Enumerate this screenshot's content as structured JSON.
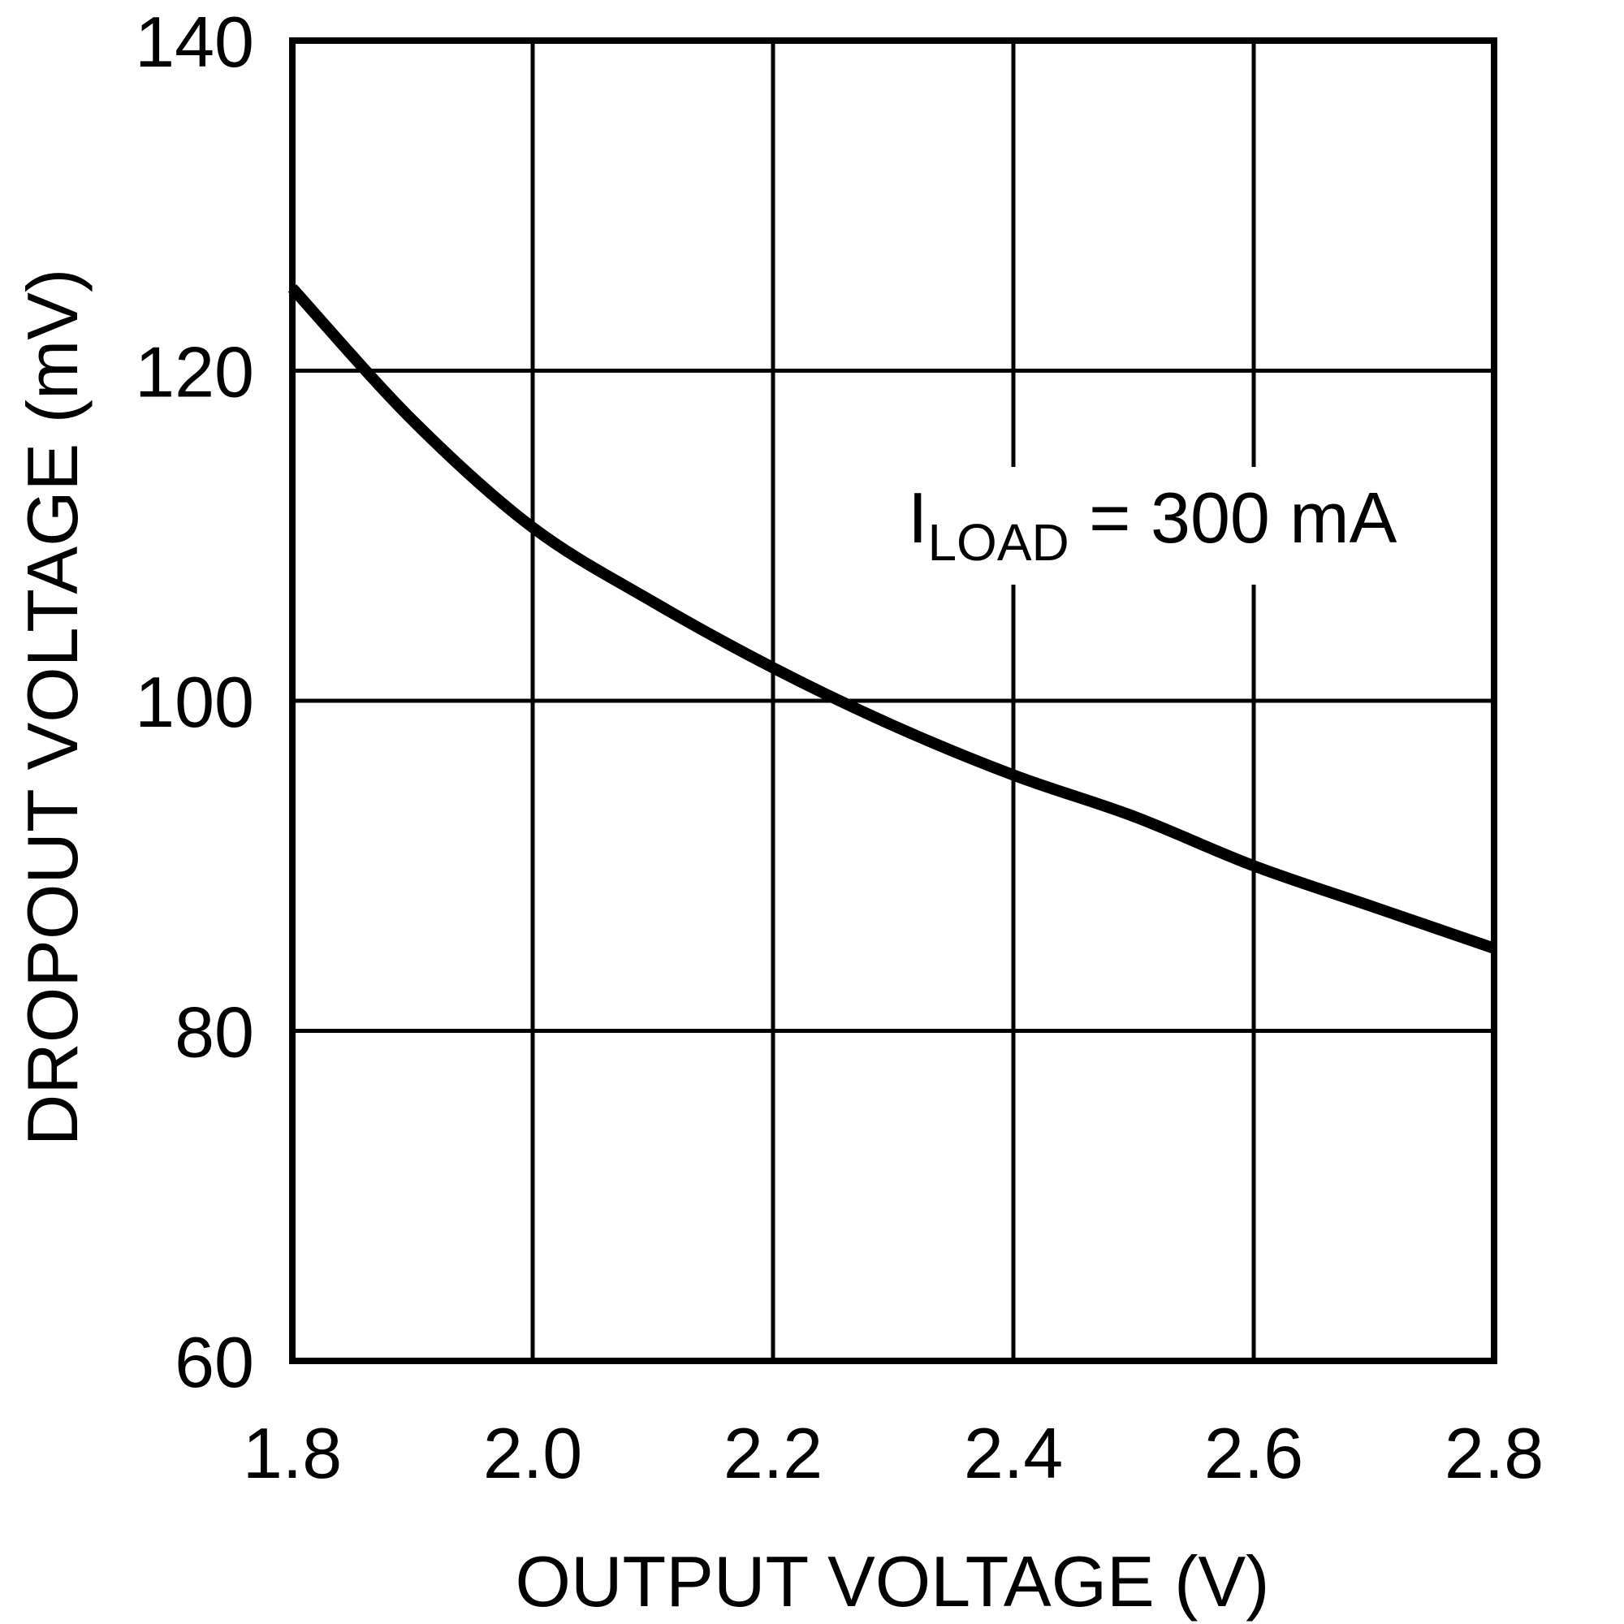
{
  "chart_data": {
    "type": "line",
    "title": "",
    "xlabel": "OUTPUT VOLTAGE (V)",
    "ylabel": "DROPOUT VOLTAGE (mV)",
    "xlim": [
      1.8,
      2.8
    ],
    "ylim": [
      60,
      140
    ],
    "x_ticks": [
      "1.8",
      "2.0",
      "2.2",
      "2.4",
      "2.6",
      "2.8"
    ],
    "y_ticks": [
      "140",
      "120",
      "100",
      "80",
      "60"
    ],
    "grid": true,
    "legend": null,
    "annotations": [
      {
        "text_main": "I",
        "text_sub": "LOAD",
        "text_rest": " = 300 mA",
        "x": 2.5,
        "y": 115
      }
    ],
    "series": [
      {
        "name": "ILOAD = 300 mA",
        "color": "#000000",
        "x": [
          1.8,
          1.9,
          2.0,
          2.1,
          2.2,
          2.3,
          2.4,
          2.5,
          2.6,
          2.7,
          2.8
        ],
        "values": [
          125,
          117,
          110.5,
          106,
          102,
          98.5,
          95.5,
          93,
          90,
          87.5,
          85
        ]
      }
    ]
  },
  "labels": {
    "x_axis_title": "OUTPUT VOLTAGE (V)",
    "y_axis_title": "DROPOUT VOLTAGE (mV)",
    "annotation_main": "I",
    "annotation_sub": "LOAD",
    "annotation_rest": " = 300 mA"
  },
  "colors": {
    "line": "#000000",
    "grid": "#000000",
    "background": "#ffffff"
  }
}
